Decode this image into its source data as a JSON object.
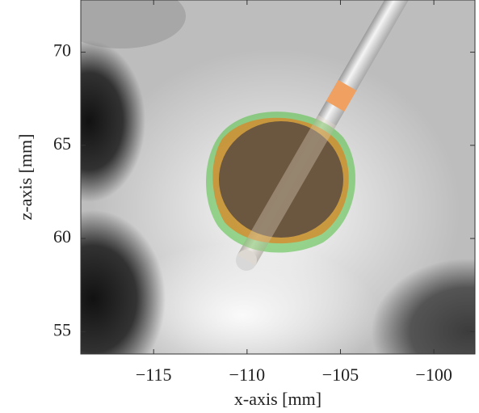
{
  "chart_data": {
    "type": "image",
    "xlabel": "x-axis [mm]",
    "ylabel": "z-axis [mm]",
    "xlim": [
      -118.9,
      -97.8
    ],
    "xticks": [
      {
        "value": -115,
        "label": "−115"
      },
      {
        "value": -110,
        "label": "−110"
      },
      {
        "value": -105,
        "label": "−105"
      },
      {
        "value": -100,
        "label": "−100"
      }
    ],
    "ylim": [
      53.8,
      72.8
    ],
    "yticks": [
      55,
      60,
      65,
      70
    ]
  }
}
